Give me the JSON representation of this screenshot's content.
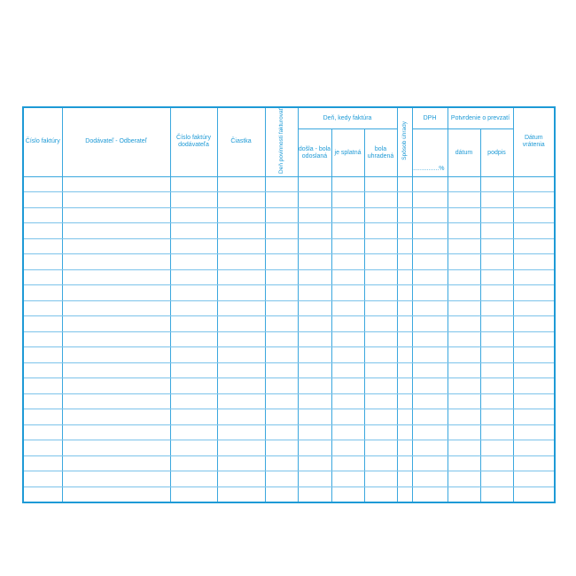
{
  "headers": {
    "cislo_faktury": "Číslo faktúry",
    "dodavatel": "Dodávateľ - Odberateľ",
    "cislo_faktury_dodavatela": "Číslo faktúry dodávateľa",
    "ciastka": "Čiastka",
    "den_povinnosti": "Deň povinnosti fakturovať",
    "den_kedy_faktura": "Deň, kedy faktúra",
    "dosla": "došla - bola odoslaná",
    "je_splatna": "je splatná",
    "bola_uhradena": "bola uhradená",
    "sposob_uhrady": "Spôsob úhrady",
    "dph": "DPH",
    "dph_percent": "...............%",
    "potvrdenie": "Potvrdenie o prevzatí",
    "datum": "dátum",
    "podpis": "podpis",
    "datum_vratenia": "Dátum vrátenia"
  },
  "row_count": 21,
  "colors": {
    "line": "#1e9ad6",
    "text": "#1e9ad6"
  }
}
